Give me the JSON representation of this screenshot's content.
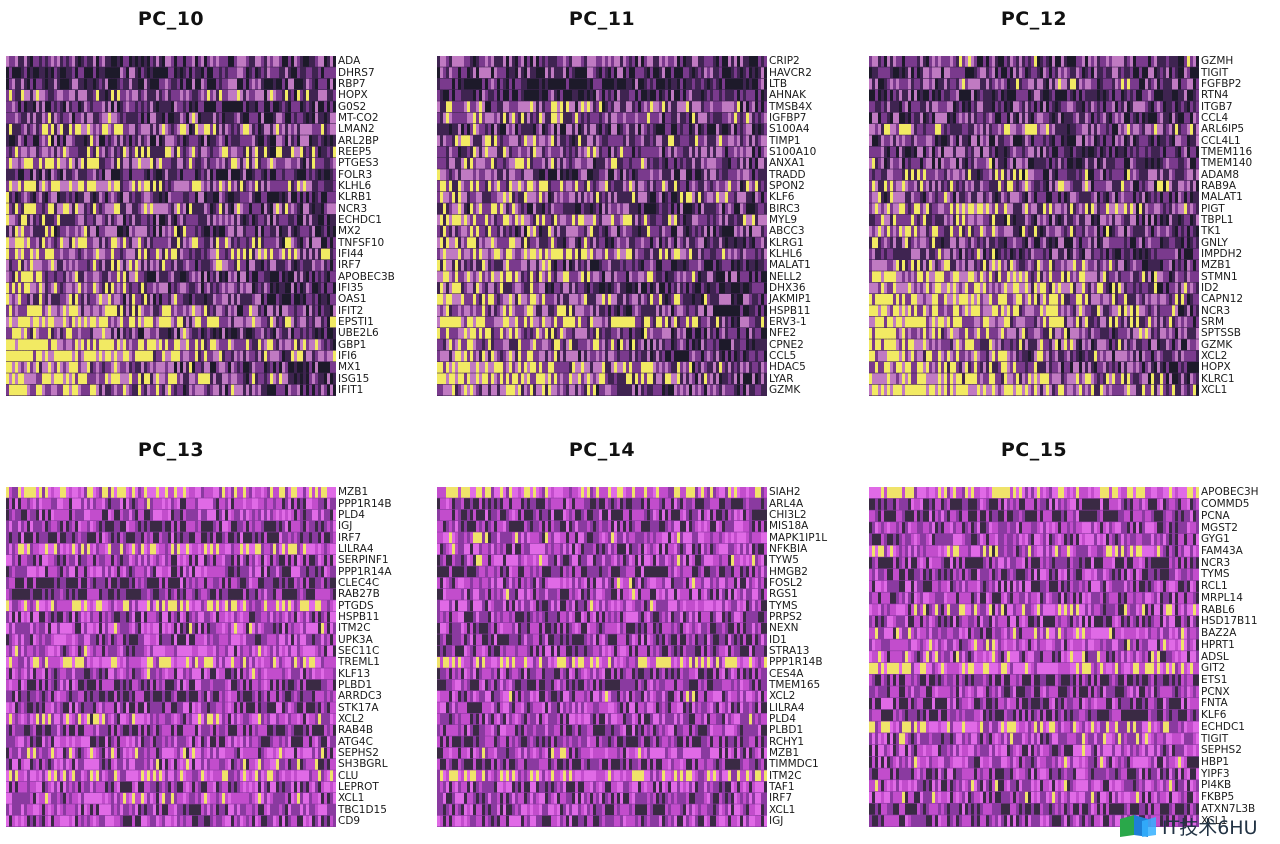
{
  "chart_data": [
    {
      "type": "heatmap",
      "title": "PC_10",
      "genes": [
        "ADA",
        "DHRS7",
        "RBP7",
        "HOPX",
        "G0S2",
        "MT-CO2",
        "LMAN2",
        "ARL2BP",
        "REEP5",
        "PTGES3",
        "FOLR3",
        "KLHL6",
        "KLRB1",
        "NCR3",
        "ECHDC1",
        "MX2",
        "TNFSF10",
        "IFI44",
        "IRF7",
        "APOBEC3B",
        "IFI35",
        "OAS1",
        "IFIT2",
        "EPSTI1",
        "UBE2L6",
        "GBP1",
        "IFI6",
        "MX1",
        "ISG15",
        "IFIT1"
      ],
      "palette": [
        "#1d1a2a",
        "#3f2451",
        "#7a3a8d",
        "#c07ac2",
        "#f2ea63"
      ]
    },
    {
      "type": "heatmap",
      "title": "PC_11",
      "genes": [
        "CRIP2",
        "HAVCR2",
        "LTB",
        "AHNAK",
        "TMSB4X",
        "IGFBP7",
        "S100A4",
        "TIMP1",
        "S100A10",
        "ANXA1",
        "TRADD",
        "SPON2",
        "KLF6",
        "BIRC3",
        "MYL9",
        "ABCC3",
        "KLRG1",
        "KLHL6",
        "MALAT1",
        "NELL2",
        "DHX36",
        "JAKMIP1",
        "HSPB11",
        "ERV3-1",
        "NFE2",
        "CPNE2",
        "CCL5",
        "HDAC5",
        "LYAR",
        "GZMK"
      ],
      "palette": [
        "#1d1a2a",
        "#3f2451",
        "#7a3a8d",
        "#c07ac2",
        "#f2ea63"
      ]
    },
    {
      "type": "heatmap",
      "title": "PC_12",
      "genes": [
        "GZMH",
        "TIGIT",
        "FGFBP2",
        "RTN4",
        "ITGB7",
        "CCL4",
        "ARL6IP5",
        "CCL4L1",
        "TMEM116",
        "TMEM140",
        "ADAM8",
        "RAB9A",
        "MALAT1",
        "PIGT",
        "TBPL1",
        "TK1",
        "GNLY",
        "IMPDH2",
        "MZB1",
        "STMN1",
        "ID2",
        "CAPN12",
        "NCR3",
        "SRM",
        "SPTSSB",
        "GZMK",
        "XCL2",
        "HOPX",
        "KLRC1",
        "XCL1"
      ],
      "palette": [
        "#1d1a2a",
        "#3f2451",
        "#7a3a8d",
        "#c07ac2",
        "#f2ea63"
      ]
    },
    {
      "type": "heatmap",
      "title": "PC_13",
      "genes": [
        "MZB1",
        "PPP1R14B",
        "PLD4",
        "IGJ",
        "IRF7",
        "LILRA4",
        "SERPINF1",
        "PPP1R14A",
        "CLEC4C",
        "RAB27B",
        "PTGDS",
        "HSPB11",
        "ITM2C",
        "UPK3A",
        "SEC11C",
        "TREML1",
        "KLF13",
        "PLBD1",
        "ARRDC3",
        "STK17A",
        "XCL2",
        "RAB4B",
        "ATG4C",
        "SEPHS2",
        "SH3BGRL",
        "CLU",
        "LEPROT",
        "XCL1",
        "TBC1D15",
        "CD9"
      ],
      "palette": [
        "#3a2a44",
        "#8a3aa0",
        "#c24dcc",
        "#e06ae6",
        "#f0e36a"
      ]
    },
    {
      "type": "heatmap",
      "title": "PC_14",
      "genes": [
        "SIAH2",
        "ARL4A",
        "CHI3L2",
        "MIS18A",
        "MAPK1IP1L",
        "NFKBIA",
        "TYW5",
        "HMGB2",
        "FOSL2",
        "RGS1",
        "TYMS",
        "PRPS2",
        "NEXN",
        "ID1",
        "STRA13",
        "PPP1R14B",
        "CES4A",
        "TMEM165",
        "XCL2",
        "LILRA4",
        "PLD4",
        "PLBD1",
        "RCHY1",
        "MZB1",
        "TIMMDC1",
        "ITM2C",
        "TAF1",
        "IRF7",
        "XCL1",
        "IGJ"
      ],
      "palette": [
        "#3a2a44",
        "#8a3aa0",
        "#c24dcc",
        "#e06ae6",
        "#f0e36a"
      ]
    },
    {
      "type": "heatmap",
      "title": "PC_15",
      "genes": [
        "APOBEC3H",
        "COMMD5",
        "PCNA",
        "MGST2",
        "GYG1",
        "FAM43A",
        "NCR3",
        "TYMS",
        "RCL1",
        "MRPL14",
        "RABL6",
        "HSD17B11",
        "BAZ2A",
        "HPRT1",
        "ADSL",
        "GIT2",
        "ETS1",
        "PCNX",
        "FNTA",
        "KLF6",
        "ECHDC1",
        "TIGIT",
        "SEPHS2",
        "HBP1",
        "YIPF3",
        "PI4KB",
        "FKBP5",
        "ATXN7L3B",
        "XCL1"
      ],
      "palette": [
        "#3a2a44",
        "#8a3aa0",
        "#c24dcc",
        "#e06ae6",
        "#f0e36a"
      ]
    }
  ],
  "watermark": {
    "text": "IT技术6HU"
  }
}
